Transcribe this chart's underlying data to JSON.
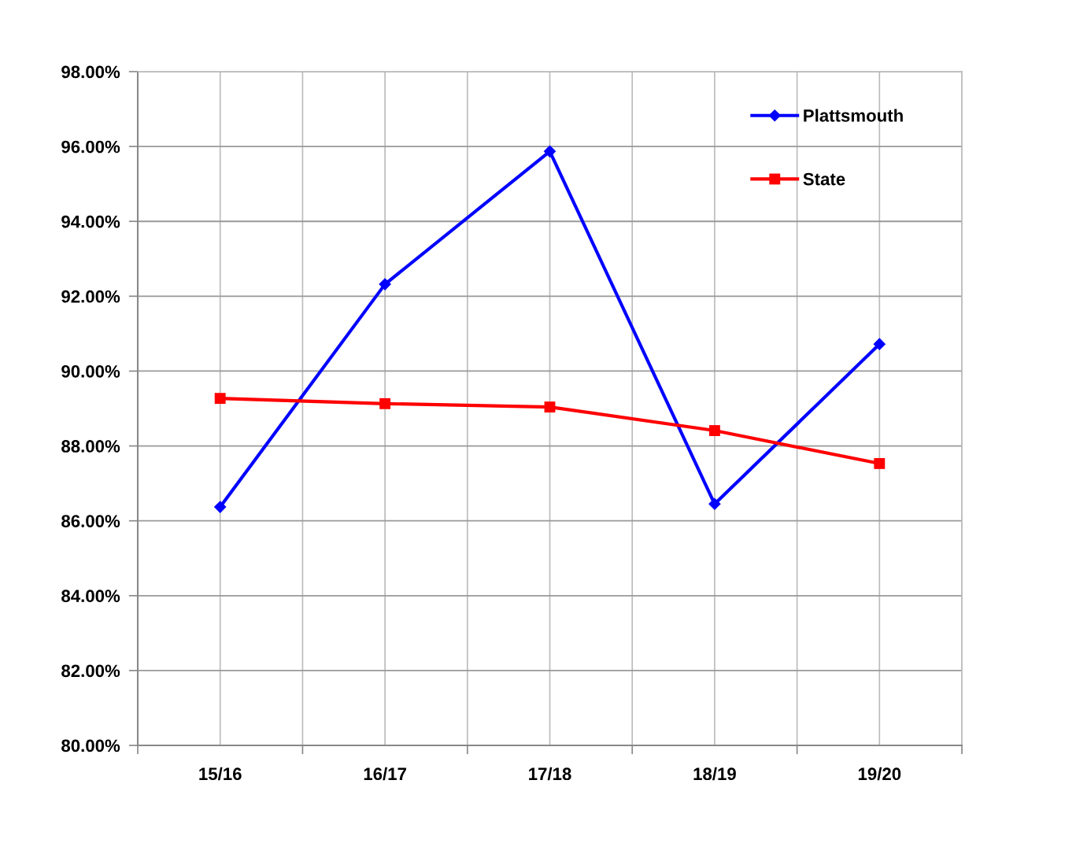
{
  "chart_data": {
    "type": "line",
    "categories": [
      "15/16",
      "16/17",
      "17/18",
      "18/19",
      "19/20"
    ],
    "series": [
      {
        "name": "Plattsmouth",
        "color": "#0000ff",
        "marker": "diamond",
        "values": [
          86.37,
          92.32,
          95.87,
          86.45,
          90.72
        ]
      },
      {
        "name": "State",
        "color": "#ff0000",
        "marker": "square",
        "values": [
          89.27,
          89.13,
          89.04,
          88.41,
          87.53
        ]
      }
    ],
    "ylim": [
      80,
      98
    ],
    "yticks": [
      {
        "value": 80,
        "label": "80.00%"
      },
      {
        "value": 82,
        "label": "82.00%"
      },
      {
        "value": 84,
        "label": "84.00%"
      },
      {
        "value": 86,
        "label": "86.00%"
      },
      {
        "value": 88,
        "label": "88.00%"
      },
      {
        "value": 90,
        "label": "90.00%"
      },
      {
        "value": 92,
        "label": "92.00%"
      },
      {
        "value": 94,
        "label": "94.00%"
      },
      {
        "value": 96,
        "label": "96.00%"
      },
      {
        "value": 98,
        "label": "98.00%"
      }
    ],
    "grid": true,
    "legend": "top right",
    "line_style": "solid"
  }
}
